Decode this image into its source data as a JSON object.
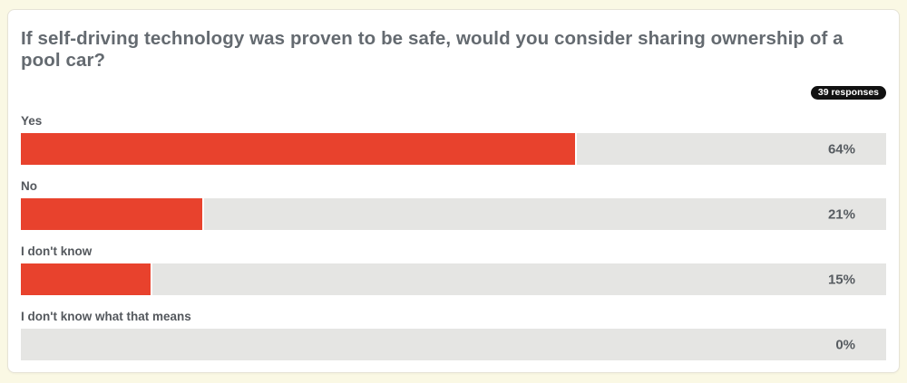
{
  "page": {
    "background_color": "#FAF8E4",
    "card_background": "#FFFFFF",
    "card_border_color": "#E6E3D7"
  },
  "question": {
    "title": "If self-driving technology was proven to be safe, would you consider sharing ownership of a pool car?"
  },
  "responses_badge": {
    "label": "39 responses",
    "background": "#111111",
    "text_color": "#FFFFFF"
  },
  "chart_data": {
    "type": "bar",
    "orientation": "horizontal",
    "title": "If self-driving technology was proven to be safe, would you consider sharing ownership of a pool car?",
    "categories": [
      "Yes",
      "No",
      "I don't know",
      "I don't know what that means"
    ],
    "values": [
      64,
      21,
      15,
      0
    ],
    "value_labels": [
      "64%",
      "21%",
      "15%",
      "0%"
    ],
    "xlim": [
      0,
      100
    ],
    "responses_count": 39,
    "bar_color": "#E8422D",
    "track_color": "#E5E5E3",
    "label_color": "#54585D",
    "value_color": "#575C61",
    "grid": "off",
    "legend": "none"
  }
}
